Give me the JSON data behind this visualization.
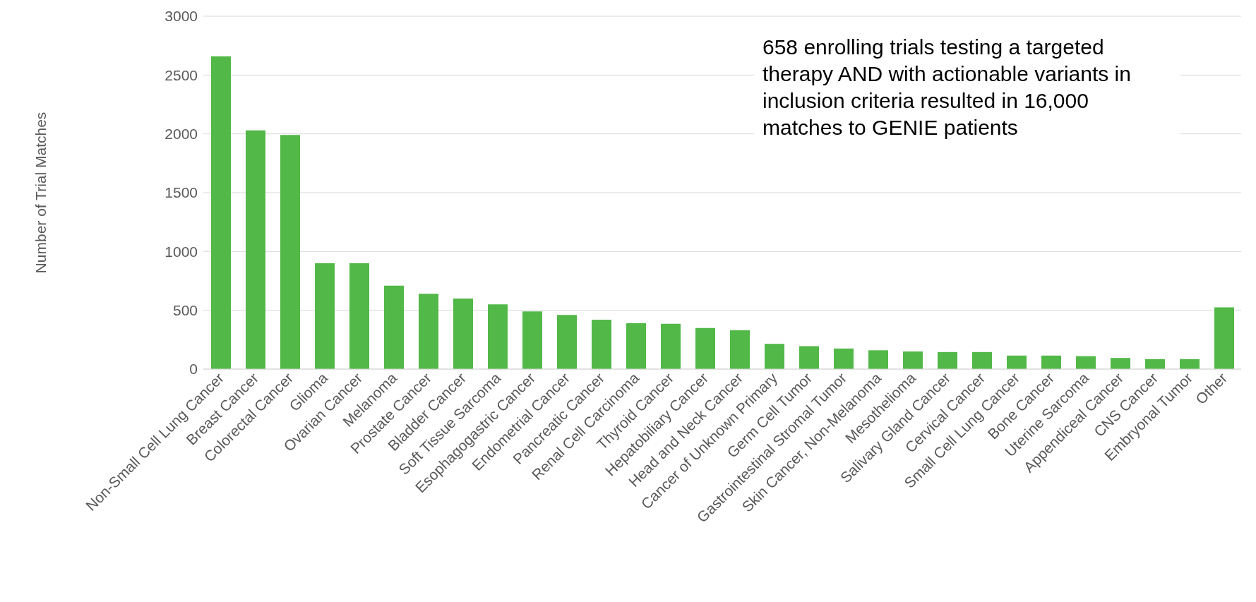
{
  "chart_data": {
    "type": "bar",
    "ylabel": "Number of Trial Matches",
    "categories": [
      "Non-Small Cell Lung Cancer",
      "Breast Cancer",
      "Colorectal Cancer",
      "Glioma",
      "Ovarian Cancer",
      "Melanoma",
      "Prostate Cancer",
      "Bladder Cancer",
      "Soft Tissue Sarcoma",
      "Esophagogastric Cancer",
      "Endometrial Cancer",
      "Pancreatic Cancer",
      "Renal Cell Carcinoma",
      "Thyroid Cancer",
      "Hepatobiliary Cancer",
      "Head and Neck Cancer",
      "Cancer of Unknown Primary",
      "Germ Cell Tumor",
      "Gastrointestinal Stromal Tumor",
      "Skin Cancer, Non-Melanoma",
      "Mesothelioma",
      "Salivary Gland Cancer",
      "Cervical Cancer",
      "Small Cell Lung Cancer",
      "Bone Cancer",
      "Uterine Sarcoma",
      "Appendiceal Cancer",
      "CNS Cancer",
      "Embryonal Tumor",
      "Other"
    ],
    "values": [
      2660,
      2030,
      1990,
      900,
      900,
      710,
      640,
      600,
      550,
      490,
      460,
      420,
      390,
      385,
      350,
      330,
      215,
      195,
      175,
      160,
      150,
      145,
      145,
      115,
      115,
      110,
      95,
      85,
      85,
      525
    ],
    "color": "#52b848",
    "ylim": [
      0,
      3000
    ],
    "yticks": [
      0,
      500,
      1000,
      1500,
      2000,
      2500,
      3000
    ],
    "grid": "y",
    "annotations": [
      "658 enrolling trials testing a targeted therapy AND with actionable variants in inclusion criteria resulted in 16,000 matches to GENIE patients"
    ]
  }
}
